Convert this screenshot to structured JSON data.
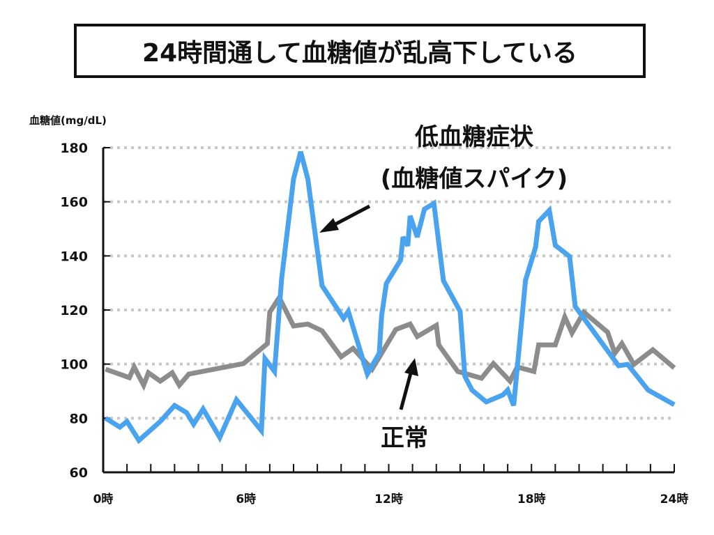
{
  "chart_data": {
    "type": "line",
    "title": "24時間通して血糖値が乱高下している",
    "ylabel": "血糖値(mg/dL)",
    "xlabel": "",
    "xlim": [
      0,
      24
    ],
    "ylim": [
      60,
      180
    ],
    "x_ticks": [
      0,
      6,
      12,
      18,
      24
    ],
    "x_tick_labels": [
      "0時",
      "6時",
      "12時",
      "18時",
      "24時"
    ],
    "y_ticks": [
      60,
      80,
      100,
      120,
      140,
      160,
      180
    ],
    "y_tick_labels": [
      "60",
      "80",
      "100",
      "120",
      "140",
      "160",
      "180"
    ],
    "grid": "horizontal dotted",
    "annotations": [
      {
        "text_lines": [
          "低血糖症状",
          "(血糖値スパイク)"
        ],
        "points_to": "blue-series-peak"
      },
      {
        "text_lines": [
          "正常"
        ],
        "points_to": "gray-series"
      }
    ],
    "series": [
      {
        "color": "#4aa3ee",
        "points": [
          [
            0.1,
            80
          ],
          [
            0.7,
            76.7
          ],
          [
            1.0,
            78.8
          ],
          [
            1.5,
            71.8
          ],
          [
            2.4,
            78.8
          ],
          [
            3.0,
            84.7
          ],
          [
            3.5,
            82.1
          ],
          [
            3.8,
            77.8
          ],
          [
            4.2,
            83.4
          ],
          [
            4.9,
            72.9
          ],
          [
            5.6,
            86.8
          ],
          [
            6.65,
            75.4
          ],
          [
            6.8,
            102
          ],
          [
            7.2,
            97.3
          ],
          [
            7.5,
            131.6
          ],
          [
            8.0,
            168.4
          ],
          [
            8.3,
            178.5
          ],
          [
            8.6,
            168.4
          ],
          [
            9.2,
            129
          ],
          [
            10.1,
            116.9
          ],
          [
            10.3,
            119.5
          ],
          [
            11.1,
            96.3
          ],
          [
            11.6,
            104
          ],
          [
            11.7,
            117.9
          ],
          [
            11.9,
            129.8
          ],
          [
            12.5,
            138.5
          ],
          [
            12.6,
            147
          ],
          [
            12.8,
            143.7
          ],
          [
            12.9,
            154.8
          ],
          [
            13.2,
            147
          ],
          [
            13.5,
            157.3
          ],
          [
            13.9,
            159.4
          ],
          [
            14.3,
            130.8
          ],
          [
            15.0,
            119.5
          ],
          [
            15.2,
            95.5
          ],
          [
            15.5,
            90.4
          ],
          [
            16.1,
            86
          ],
          [
            16.8,
            88.6
          ],
          [
            17.0,
            90.4
          ],
          [
            17.25,
            84.7
          ],
          [
            17.75,
            131
          ],
          [
            18.17,
            143.2
          ],
          [
            18.3,
            152.7
          ],
          [
            18.75,
            156.8
          ],
          [
            19.0,
            143.9
          ],
          [
            19.6,
            139.8
          ],
          [
            19.84,
            121.3
          ],
          [
            21.66,
            99.4
          ],
          [
            22.04,
            99.9
          ],
          [
            22.9,
            90.4
          ],
          [
            24,
            85
          ]
        ]
      },
      {
        "color": "#8c8c8c",
        "points": [
          [
            0.1,
            98.1
          ],
          [
            1.1,
            95
          ],
          [
            1.3,
            98.9
          ],
          [
            1.7,
            92.2
          ],
          [
            1.9,
            96.8
          ],
          [
            2.4,
            93.7
          ],
          [
            2.9,
            96.8
          ],
          [
            3.2,
            92.2
          ],
          [
            3.6,
            96.3
          ],
          [
            5.9,
            100.2
          ],
          [
            6.9,
            107.6
          ],
          [
            7.0,
            119.2
          ],
          [
            7.4,
            124.6
          ],
          [
            8.0,
            114.1
          ],
          [
            8.6,
            114.8
          ],
          [
            9.2,
            112.3
          ],
          [
            10.0,
            102.7
          ],
          [
            10.5,
            105.8
          ],
          [
            11.3,
            98.1
          ],
          [
            12.3,
            112.8
          ],
          [
            12.9,
            114.8
          ],
          [
            13.2,
            110.2
          ],
          [
            14.0,
            114.3
          ],
          [
            14.1,
            107.1
          ],
          [
            14.9,
            97.3
          ],
          [
            15.9,
            94.8
          ],
          [
            16.4,
            100.2
          ],
          [
            17.1,
            93.7
          ],
          [
            17.4,
            98.9
          ],
          [
            18.1,
            97.3
          ],
          [
            18.3,
            107.1
          ],
          [
            19.0,
            107.1
          ],
          [
            19.4,
            117.4
          ],
          [
            19.7,
            111.5
          ],
          [
            20.2,
            119.2
          ],
          [
            21.2,
            111.8
          ],
          [
            21.5,
            104
          ],
          [
            21.8,
            107.6
          ],
          [
            22.3,
            99.9
          ],
          [
            23.1,
            105.3
          ],
          [
            24,
            98.6
          ]
        ]
      }
    ]
  }
}
